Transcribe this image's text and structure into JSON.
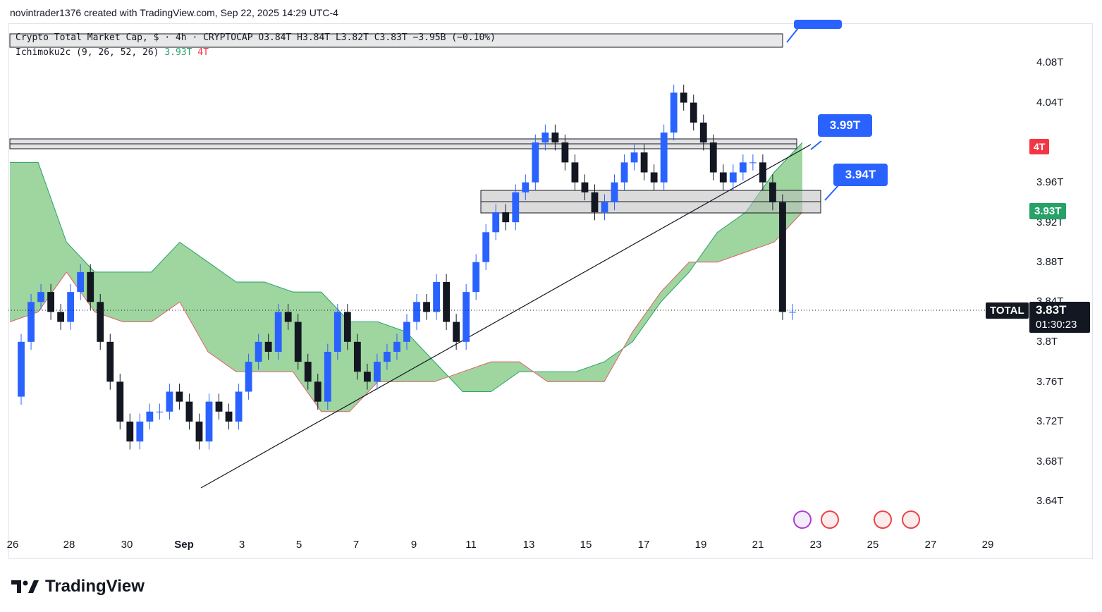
{
  "header": {
    "text": "novintrader1376 created with TradingView.com, Sep 22, 2025 14:29 UTC-4"
  },
  "legend": {
    "main": "Crypto Total Market Cap, $ · 4h · CRYPTOCAP  O3.84T  H3.84T  L3.82T  C3.83T  −3.95B (−0.10%)",
    "indicator_name": "Ichimoku2c (9, 26, 52, 26)",
    "indicator_val1": "3.93T",
    "indicator_val2": "4T"
  },
  "y_axis": {
    "labels": [
      "4.08T",
      "4.04T",
      "3.96T",
      "3.92T",
      "3.88T",
      "3.84T",
      "3.8T",
      "3.76T",
      "3.72T",
      "3.68T",
      "3.64T"
    ]
  },
  "x_axis": {
    "labels": [
      "26",
      "28",
      "30",
      "Sep",
      "3",
      "5",
      "7",
      "9",
      "11",
      "13",
      "15",
      "17",
      "19",
      "21",
      "23",
      "25",
      "27",
      "29"
    ]
  },
  "price_tags": {
    "symbol": "TOTAL",
    "last_price": "3.83T",
    "countdown": "01:30:23",
    "span_b": "4T",
    "span_a": "3.93T"
  },
  "callouts": {
    "upper": "3.99T",
    "lower": "3.94T"
  },
  "colors": {
    "up": "#2962ff",
    "down": "#131722",
    "cloud": "#7fc77f",
    "accent": "#2962ff",
    "red": "#f23645",
    "green": "#26a269"
  },
  "brand": {
    "name": "TradingView"
  },
  "chart_data": {
    "type": "candlestick",
    "symbol": "TOTAL",
    "timeframe": "4h",
    "ylim": [
      3.62,
      4.11
    ],
    "cloud_upper": [
      3.98,
      3.98,
      3.9,
      3.87,
      3.87,
      3.87,
      3.9,
      3.88,
      3.86,
      3.86,
      3.85,
      3.85,
      3.82,
      3.82,
      3.81,
      3.78,
      3.75,
      3.75,
      3.77,
      3.77,
      3.77,
      3.78,
      3.8,
      3.84,
      3.87,
      3.91,
      3.93,
      3.97,
      4.0
    ],
    "cloud_lower": [
      3.82,
      3.83,
      3.87,
      3.83,
      3.82,
      3.82,
      3.84,
      3.79,
      3.77,
      3.77,
      3.77,
      3.73,
      3.73,
      3.76,
      3.76,
      3.76,
      3.77,
      3.78,
      3.78,
      3.76,
      3.76,
      3.76,
      3.81,
      3.85,
      3.88,
      3.88,
      3.89,
      3.9,
      3.93
    ],
    "trendline": [
      [
        3.65,
        0.17
      ],
      [
        3.98,
        0.74
      ]
    ]
  }
}
